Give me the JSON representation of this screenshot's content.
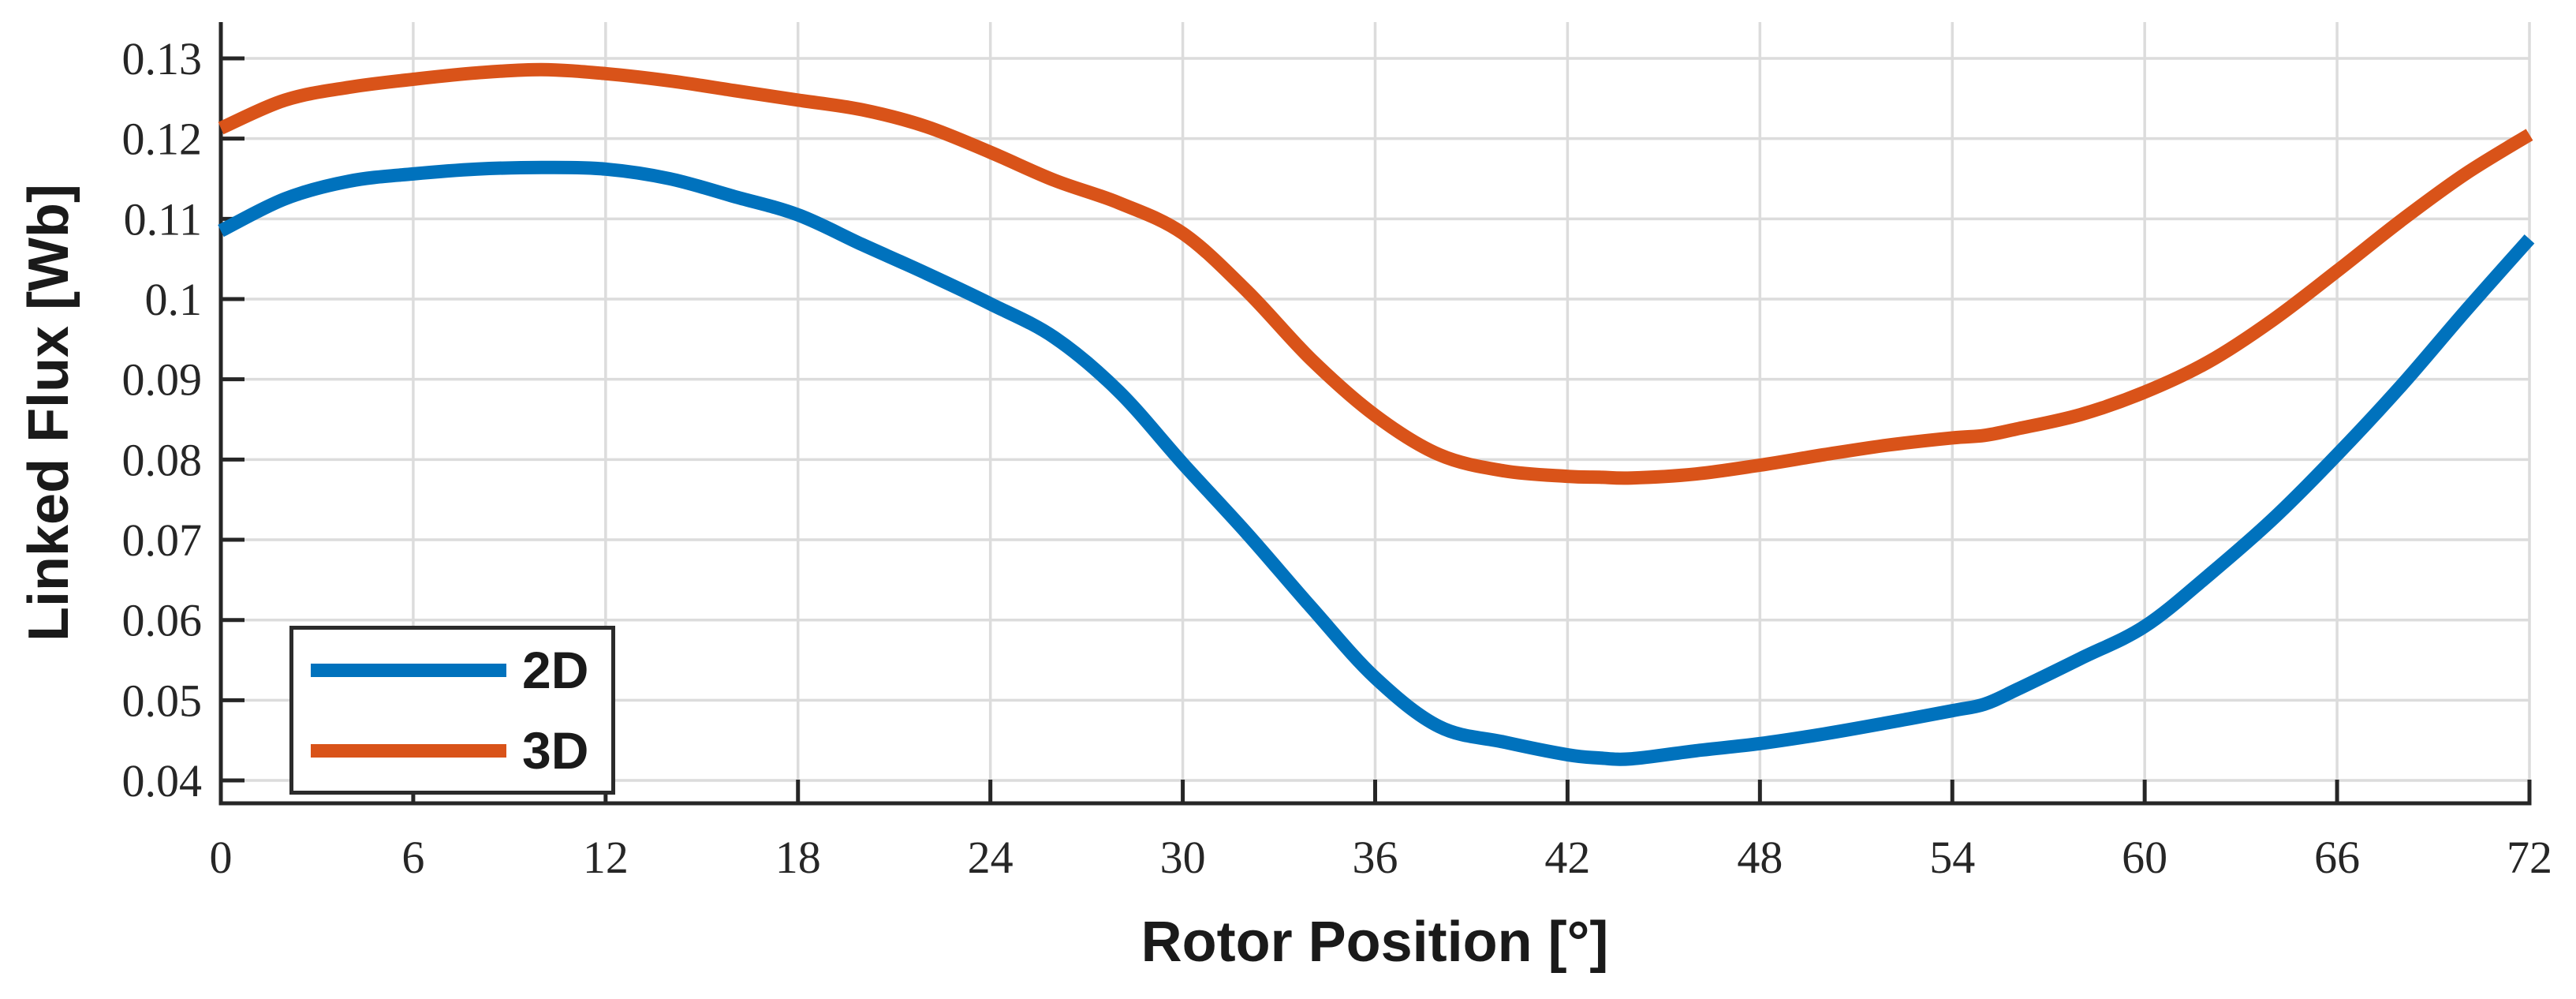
{
  "chart_data": {
    "type": "line",
    "title": "",
    "xlabel": "Rotor Position [°]",
    "ylabel": "Linked Flux [Wb]",
    "xlim": [
      0,
      72
    ],
    "ylim": [
      0.0371,
      0.1345
    ],
    "grid": true,
    "legend_position": "lower-left",
    "background_color": "#ffffff",
    "grid_color": "#dcdcdc",
    "axis_color": "#262626",
    "x_ticks": [
      0,
      6,
      12,
      18,
      24,
      30,
      36,
      42,
      48,
      54,
      60,
      66,
      72
    ],
    "x_tick_labels": [
      "0",
      "6",
      "12",
      "18",
      "24",
      "30",
      "36",
      "42",
      "48",
      "54",
      "60",
      "66",
      "72"
    ],
    "y_ticks": [
      0.04,
      0.05,
      0.06,
      0.07,
      0.08,
      0.09,
      0.1,
      0.11,
      0.12,
      0.13
    ],
    "y_tick_labels": [
      "0.04",
      "0.05",
      "0.06",
      "0.07",
      "0.08",
      "0.09",
      "0.1",
      "0.11",
      "0.12",
      "0.13"
    ],
    "x": [
      0,
      2,
      4,
      6,
      8,
      10,
      12,
      14,
      16,
      18,
      20,
      22,
      24,
      26,
      28,
      30,
      32,
      34,
      36,
      38,
      40,
      42,
      43,
      44,
      46,
      48,
      50,
      52,
      54,
      55,
      56,
      58,
      60,
      62,
      64,
      66,
      68,
      70,
      72
    ],
    "series": [
      {
        "name": "2D",
        "color": "#0072BD",
        "values": [
          0.1085,
          0.1125,
          0.1147,
          0.1156,
          0.1162,
          0.1164,
          0.1162,
          0.115,
          0.1128,
          0.1105,
          0.1068,
          0.1032,
          0.0994,
          0.0952,
          0.0885,
          0.0795,
          0.0708,
          0.0616,
          0.0528,
          0.0467,
          0.0448,
          0.0432,
          0.0428,
          0.0427,
          0.0437,
          0.0446,
          0.0458,
          0.0472,
          0.0487,
          0.0495,
          0.0513,
          0.0552,
          0.0592,
          0.0656,
          0.0726,
          0.0806,
          0.0892,
          0.0985,
          0.1075
        ]
      },
      {
        "name": "3D",
        "color": "#D95319",
        "values": [
          0.1213,
          0.1248,
          0.1264,
          0.1274,
          0.1282,
          0.1286,
          0.1281,
          0.1272,
          0.126,
          0.1248,
          0.1236,
          0.1215,
          0.1183,
          0.1148,
          0.112,
          0.1082,
          0.101,
          0.0925,
          0.0855,
          0.0806,
          0.0786,
          0.0779,
          0.0778,
          0.0777,
          0.0782,
          0.0793,
          0.0806,
          0.0818,
          0.0827,
          0.083,
          0.0838,
          0.0856,
          0.0884,
          0.0922,
          0.0974,
          0.1035,
          0.1098,
          0.1156,
          0.1205
        ]
      }
    ]
  }
}
